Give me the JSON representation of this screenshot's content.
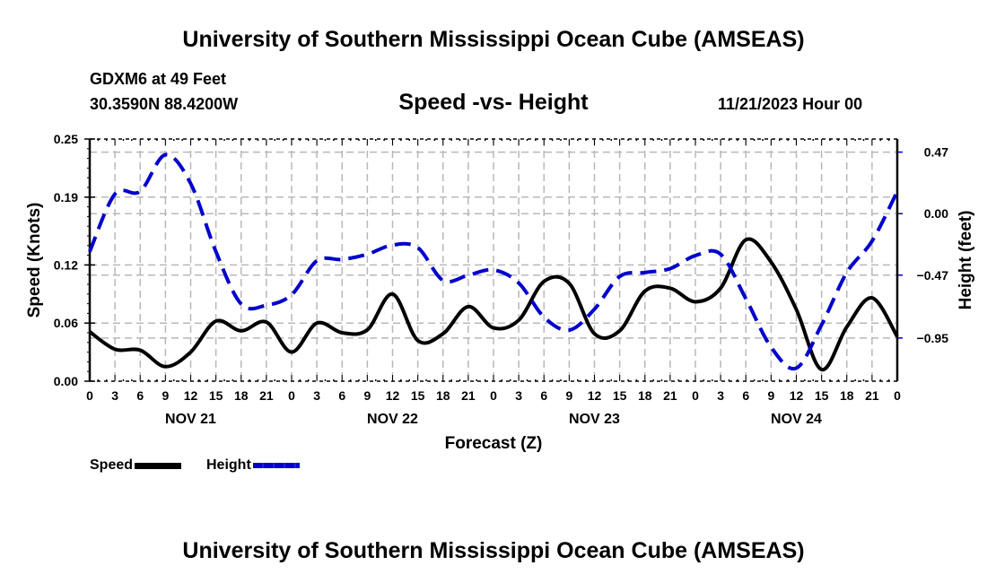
{
  "header": {
    "title": "University of Southern Mississippi Ocean Cube (AMSEAS)",
    "station": "GDXM6 at 49 Feet",
    "coords": "30.3590N  88.4200W",
    "subtitle": "Speed -vs- Height",
    "datestamp": "11/21/2023 Hour 00"
  },
  "footer": {
    "title": "University of Southern Mississippi Ocean Cube (AMSEAS)"
  },
  "legend": {
    "speed_label": "Speed",
    "height_label": "Height"
  },
  "chart_data": {
    "type": "line",
    "title": "Speed -vs- Height",
    "xlabel": "Forecast (Z)",
    "ylabel": "Speed (Knots)",
    "y2label": "Height (feet)",
    "xlim": [
      0,
      96
    ],
    "ylim": [
      0,
      0.25
    ],
    "y2lim": [
      -1.28,
      0.57
    ],
    "grid": true,
    "legend_position": "bottom-left",
    "x_tick_labels": [
      "0",
      "3",
      "6",
      "9",
      "12",
      "15",
      "18",
      "21",
      "0",
      "3",
      "6",
      "9",
      "12",
      "15",
      "18",
      "21",
      "0",
      "3",
      "6",
      "9",
      "12",
      "15",
      "18",
      "21",
      "0",
      "3",
      "6",
      "9",
      "12",
      "15",
      "18",
      "21",
      "0"
    ],
    "day_labels": [
      {
        "label": "NOV 21",
        "hour": 12
      },
      {
        "label": "NOV 22",
        "hour": 36
      },
      {
        "label": "NOV 23",
        "hour": 60
      },
      {
        "label": "NOV 24",
        "hour": 84
      }
    ],
    "y_ticks": [
      {
        "value": 0.0,
        "label": "0.00"
      },
      {
        "value": 0.06,
        "label": "0.06"
      },
      {
        "value": 0.12,
        "label": "0.12"
      },
      {
        "value": 0.19,
        "label": "0.19"
      },
      {
        "value": 0.25,
        "label": "0.25"
      }
    ],
    "y2_ticks": [
      {
        "value": 0.47,
        "label": "0.47"
      },
      {
        "value": 0.0,
        "label": "0.00"
      },
      {
        "value": -0.47,
        "label": "−0.47"
      },
      {
        "value": -0.95,
        "label": "−0.95"
      }
    ],
    "x": [
      0,
      3,
      6,
      9,
      12,
      15,
      18,
      21,
      24,
      27,
      30,
      33,
      36,
      39,
      42,
      45,
      48,
      51,
      54,
      57,
      60,
      63,
      66,
      69,
      72,
      75,
      78,
      81,
      84,
      87,
      90,
      93,
      96
    ],
    "series": [
      {
        "name": "Speed",
        "axis": "left",
        "color": "#000000",
        "style": "solid",
        "values": [
          0.051,
          0.033,
          0.032,
          0.015,
          0.03,
          0.062,
          0.052,
          0.061,
          0.03,
          0.06,
          0.05,
          0.053,
          0.09,
          0.042,
          0.049,
          0.077,
          0.055,
          0.063,
          0.103,
          0.101,
          0.049,
          0.052,
          0.093,
          0.096,
          0.082,
          0.096,
          0.146,
          0.123,
          0.074,
          0.012,
          0.056,
          0.086,
          0.046
        ]
      },
      {
        "name": "Height",
        "axis": "right",
        "color": "#0000cc",
        "style": "dashed",
        "values": [
          -0.29,
          0.15,
          0.17,
          0.45,
          0.23,
          -0.29,
          -0.69,
          -0.7,
          -0.62,
          -0.36,
          -0.35,
          -0.31,
          -0.24,
          -0.26,
          -0.51,
          -0.47,
          -0.43,
          -0.53,
          -0.79,
          -0.89,
          -0.73,
          -0.48,
          -0.45,
          -0.42,
          -0.32,
          -0.31,
          -0.65,
          -1.02,
          -1.18,
          -0.85,
          -0.45,
          -0.21,
          0.17
        ]
      }
    ]
  }
}
